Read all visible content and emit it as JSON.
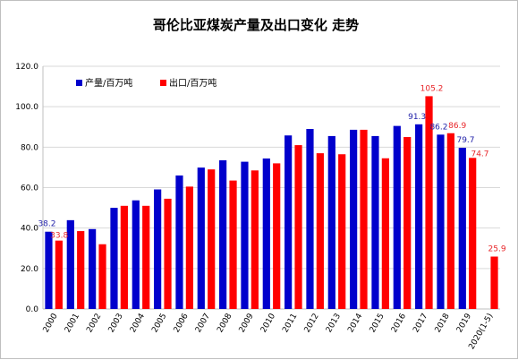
{
  "chart_data": {
    "type": "bar",
    "title": "哥伦比亚煤炭产量及出口变化 走势",
    "xlabel": "",
    "ylabel": "",
    "ylim": [
      0,
      120
    ],
    "yticks": [
      "0.0",
      "20.0",
      "40.0",
      "60.0",
      "80.0",
      "100.0",
      "120.0"
    ],
    "grid": true,
    "legend": "top-left",
    "categories": [
      "2000",
      "2001",
      "2002",
      "2003",
      "2004",
      "2005",
      "2006",
      "2007",
      "2008",
      "2009",
      "2010",
      "2011",
      "2012",
      "2013",
      "2014",
      "2015",
      "2016",
      "2017",
      "2018",
      "2019",
      "2020(1-5)"
    ],
    "series": [
      {
        "name": "产量/百万吨",
        "color": "#0000cc",
        "label_color": "#1f1fa8",
        "values": [
          38.2,
          43.9,
          39.5,
          50.0,
          53.7,
          59.1,
          66.0,
          69.9,
          73.5,
          72.8,
          74.4,
          85.8,
          89.0,
          85.5,
          88.6,
          85.5,
          90.5,
          91.3,
          86.2,
          79.7,
          null
        ],
        "labels": {
          "0": "38.2",
          "17": "91.3",
          "18": "86.2",
          "19": "79.7"
        }
      },
      {
        "name": "出口/百万吨",
        "color": "#ff0000",
        "label_color": "#e8262a",
        "values": [
          33.8,
          38.5,
          32.0,
          51.0,
          51.0,
          54.5,
          60.5,
          69.0,
          63.5,
          68.5,
          72.0,
          81.0,
          77.0,
          76.5,
          88.6,
          74.5,
          85.0,
          105.2,
          86.9,
          74.7,
          25.9
        ],
        "labels": {
          "0": "33.8",
          "17": "105.2",
          "18": "86.9",
          "19": "74.7",
          "20": "25.9"
        }
      }
    ]
  }
}
